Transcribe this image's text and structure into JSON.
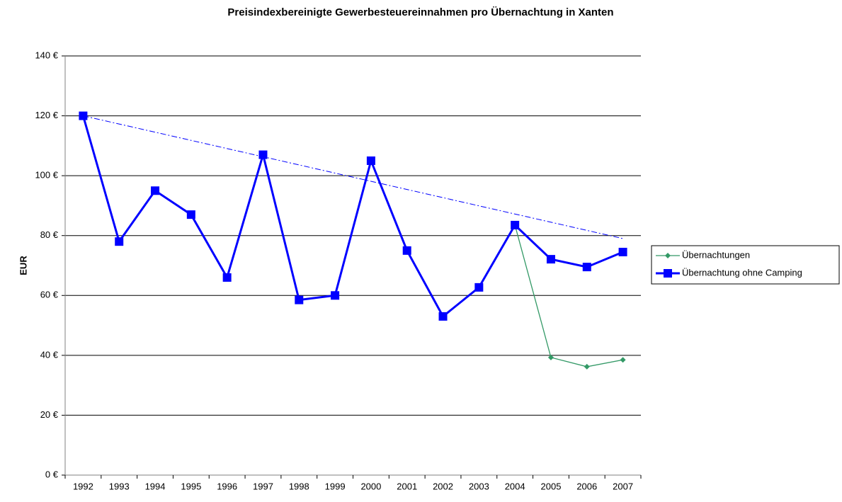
{
  "chart_data": {
    "type": "line",
    "title": "Preisindexbereinigte Gewerbesteuereinnahmen pro Übernachtung in Xanten",
    "y_label": "EUR",
    "categories": [
      "1992",
      "1993",
      "1994",
      "1995",
      "1996",
      "1997",
      "1998",
      "1999",
      "2000",
      "2001",
      "2002",
      "2003",
      "2004",
      "2005",
      "2006",
      "2007"
    ],
    "series": [
      {
        "name": "Übernachtungen",
        "color": "#339966",
        "marker": "diamond",
        "values": [
          null,
          null,
          null,
          null,
          null,
          null,
          null,
          null,
          null,
          null,
          null,
          null,
          83.5,
          39.3,
          36.2,
          38.5
        ]
      },
      {
        "name": "Übernachtung ohne Camping",
        "color": "#0000ff",
        "marker": "square",
        "values": [
          120,
          78,
          95,
          87,
          66,
          107,
          58.5,
          60,
          105,
          75,
          53,
          62.7,
          83.5,
          72.1,
          69.5,
          74.5
        ]
      }
    ],
    "trendline": {
      "color": "#0000ff",
      "values": [
        120,
        79
      ]
    },
    "ylim": [
      0,
      140
    ],
    "yticks": [
      {
        "value": 0,
        "label": "0 €"
      },
      {
        "value": 20,
        "label": "20 €"
      },
      {
        "value": 40,
        "label": "40 €"
      },
      {
        "value": 60,
        "label": "60 €"
      },
      {
        "value": 80,
        "label": "80 €"
      },
      {
        "value": 100,
        "label": "100 €"
      },
      {
        "value": 120,
        "label": "120 €"
      },
      {
        "value": 140,
        "label": "140 €"
      }
    ],
    "grid": true,
    "legend": "right"
  }
}
